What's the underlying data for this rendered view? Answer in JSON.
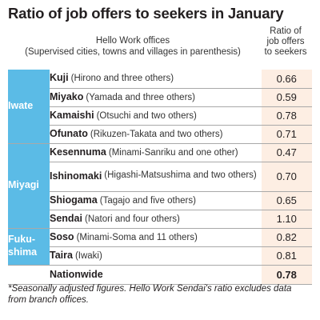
{
  "title": "Ratio of job offers to seekers in January",
  "header": {
    "offices_line1": "Hello Work offices",
    "offices_line2": "(Supervised cities, towns and villages in parenthesis)",
    "ratio_line1": "Ratio of",
    "ratio_line2": "job offers",
    "ratio_line3": "to seekers"
  },
  "prefectures": {
    "iwate": "Iwate",
    "miyagi": "Miyagi",
    "fukushima_line1": "Fuku-",
    "fukushima_line2": "shima"
  },
  "rows": [
    {
      "office": "Kuji",
      "area": "(Hirono and three others)",
      "value": "0.66"
    },
    {
      "office": "Miyako",
      "area": "(Yamada and three others)",
      "value": "0.59"
    },
    {
      "office": "Kamaishi",
      "area": "(Otsuchi and two others)",
      "value": "0.78"
    },
    {
      "office": "Ofunato",
      "area": "(Rikuzen-Takata and two others)",
      "value": "0.71"
    },
    {
      "office": "Kesennuma",
      "area": "(Minami-Sanriku and one other)",
      "value": "0.47"
    },
    {
      "office": "Ishinomaki",
      "area": "(Higashi-Matsushima and two others)",
      "value": "0.70"
    },
    {
      "office": "Shiogama",
      "area": "(Tagajo and five others)",
      "value": "0.65"
    },
    {
      "office": "Sendai",
      "area": "(Natori and four others)",
      "value": "1.10"
    },
    {
      "office": "Soso",
      "area": "(Minami-Soma and 11 others)",
      "value": "0.82"
    },
    {
      "office": "Taira",
      "area": "(Iwaki)",
      "value": "0.81"
    }
  ],
  "total": {
    "label": "Nationwide",
    "value": "0.78"
  },
  "note": "*Seasonally adjusted figures. Hello Work Sendai's ratio excludes data from branch offices.",
  "colors": {
    "prefecture_band": "#5bbbe6",
    "value_column": "#fdeee3"
  },
  "chart_data": {
    "type": "table",
    "title": "Ratio of job offers to seekers in January",
    "columns": [
      "Hello Work offices (Supervised cities, towns and villages in parenthesis)",
      "Ratio of job offers to seekers"
    ],
    "groups": [
      {
        "prefecture": "Iwate",
        "offices": [
          "Kuji",
          "Miyako",
          "Kamaishi",
          "Ofunato"
        ]
      },
      {
        "prefecture": "Miyagi",
        "offices": [
          "Kesennuma",
          "Ishinomaki",
          "Shiogama",
          "Sendai"
        ]
      },
      {
        "prefecture": "Fukushima",
        "offices": [
          "Soso",
          "Taira"
        ]
      }
    ],
    "categories": [
      "Kuji",
      "Miyako",
      "Kamaishi",
      "Ofunato",
      "Kesennuma",
      "Ishinomaki",
      "Shiogama",
      "Sendai",
      "Soso",
      "Taira",
      "Nationwide"
    ],
    "values": [
      0.66,
      0.59,
      0.78,
      0.71,
      0.47,
      0.7,
      0.65,
      1.1,
      0.82,
      0.81,
      0.78
    ]
  }
}
